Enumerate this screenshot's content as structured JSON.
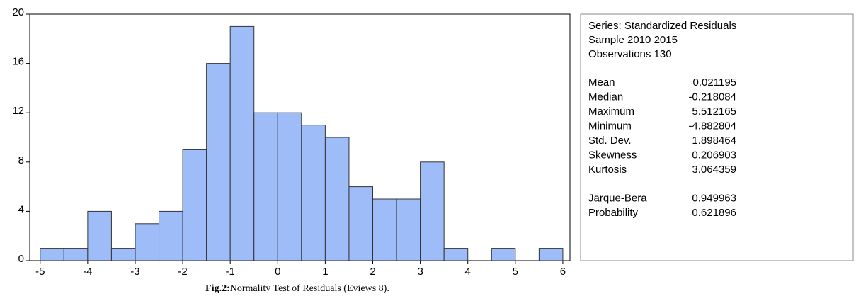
{
  "chart_data": {
    "type": "histogram",
    "bins": [
      -5,
      -4.5,
      -4,
      -3.5,
      -3,
      -2.5,
      -2,
      -1.5,
      -1,
      -0.5,
      0,
      0.5,
      1,
      1.5,
      2,
      2.5,
      3,
      3.5,
      4,
      4.5,
      5,
      5.5,
      6
    ],
    "values": [
      1,
      1,
      4,
      1,
      3,
      4,
      9,
      16,
      19,
      12,
      12,
      11,
      10,
      6,
      5,
      5,
      8,
      1,
      0,
      1,
      0,
      1
    ],
    "color": "#9dbcf8",
    "xlim": [
      -5.22,
      6.15
    ],
    "ylim": [
      0,
      20
    ],
    "xticks": [
      -5,
      -4,
      -3,
      -2,
      -1,
      0,
      1,
      2,
      3,
      4,
      5,
      6
    ],
    "yticks": [
      0,
      4,
      8,
      12,
      16,
      20
    ]
  },
  "stats": {
    "header": [
      "Series: Standardized Residuals",
      "Sample 2010 2015",
      "Observations 130"
    ],
    "rows": [
      [
        "Mean",
        "0.021195"
      ],
      [
        "Median",
        "-0.218084"
      ],
      [
        "Maximum",
        "5.512165"
      ],
      [
        "Minimum",
        "-4.882804"
      ],
      [
        "Std. Dev.",
        "1.898464"
      ],
      [
        "Skewness",
        "0.206903"
      ],
      [
        "Kurtosis",
        "3.064359"
      ]
    ],
    "tests": [
      [
        "Jarque-Bera",
        "0.949963"
      ],
      [
        "Probability",
        "0.621896"
      ]
    ]
  },
  "caption": {
    "label": "Fig.2:",
    "text": "Normality Test of Residuals (Eviews 8)."
  }
}
